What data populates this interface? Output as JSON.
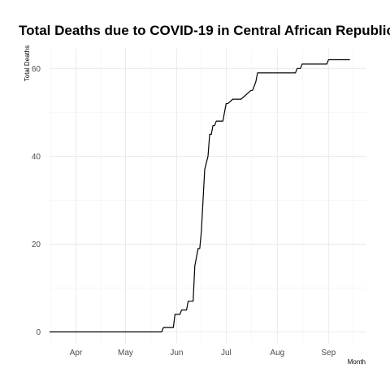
{
  "chart_data": {
    "type": "line",
    "title": "Total Deaths due to COVID-19 in Central African Republic",
    "xlabel": "Month",
    "ylabel": "Total Deaths",
    "x_ticks": [
      "Apr",
      "May",
      "Jun",
      "Jul",
      "Aug",
      "Sep"
    ],
    "x_tick_dates": [
      "2020-04-01",
      "2020-05-01",
      "2020-06-01",
      "2020-07-01",
      "2020-08-01",
      "2020-09-01"
    ],
    "xlim": [
      "2020-03-16",
      "2020-09-24"
    ],
    "y_ticks": [
      0,
      20,
      40,
      60
    ],
    "ylim": [
      -2.5,
      64.5
    ],
    "grid": true,
    "legend": "none",
    "line_color": "#000000",
    "series": [
      {
        "x": [
          "2020-03-16",
          "2020-05-23",
          "2020-05-24",
          "2020-05-30",
          "2020-05-31",
          "2020-06-03",
          "2020-06-04",
          "2020-06-07",
          "2020-06-08",
          "2020-06-11",
          "2020-06-12",
          "2020-06-14",
          "2020-06-15",
          "2020-06-16",
          "2020-06-17",
          "2020-06-18",
          "2020-06-20",
          "2020-06-21",
          "2020-06-22",
          "2020-06-23",
          "2020-06-24",
          "2020-06-25",
          "2020-06-26",
          "2020-06-27",
          "2020-06-28",
          "2020-06-29",
          "2020-07-01",
          "2020-07-02",
          "2020-07-05",
          "2020-07-06",
          "2020-07-09",
          "2020-07-10",
          "2020-07-16",
          "2020-07-17",
          "2020-07-19",
          "2020-07-20",
          "2020-07-22",
          "2020-08-12",
          "2020-08-13",
          "2020-08-15",
          "2020-08-16",
          "2020-08-31",
          "2020-09-01",
          "2020-09-14"
        ],
        "values": [
          0,
          0,
          1,
          1,
          4,
          4,
          5,
          5,
          7,
          7,
          15,
          19,
          19,
          23,
          30,
          37,
          40,
          45,
          45,
          47,
          47,
          48,
          48,
          48,
          48,
          48,
          52,
          52,
          53,
          53,
          53,
          53,
          55,
          55,
          57,
          59,
          59,
          59,
          60,
          60,
          61,
          61,
          62,
          62
        ]
      }
    ]
  }
}
